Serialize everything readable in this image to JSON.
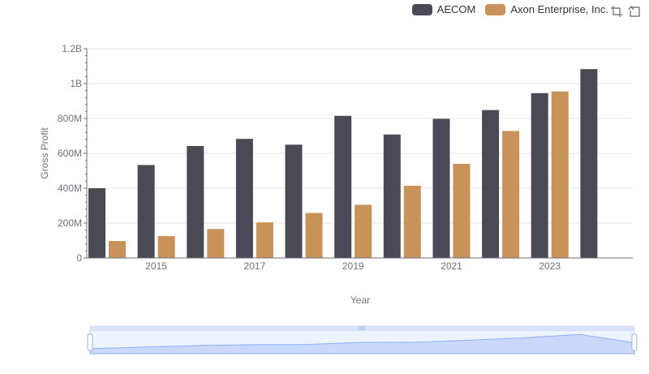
{
  "colors": {
    "aecom": "#4a4a56",
    "axon": "#c99258",
    "grid": "#e6e6e6",
    "axis": "#6e7079",
    "zoom_fill": "#d6e1fb",
    "zoom_line": "#8fb0f7"
  },
  "toolbox": {
    "icons": [
      "zoom-icon",
      "restore-icon"
    ]
  },
  "chart_data": {
    "type": "bar",
    "title": "",
    "xlabel": "Year",
    "ylabel": "Gross Profit",
    "categories": [
      "2014",
      "2015",
      "2016",
      "2017",
      "2018",
      "2019",
      "2020",
      "2021",
      "2022",
      "2023",
      "2024"
    ],
    "x_tick_labels": [
      "2015",
      "2017",
      "2019",
      "2021",
      "2023"
    ],
    "y_tick_labels": [
      "0",
      "200M",
      "400M",
      "600M",
      "800M",
      "1B",
      "1.2B"
    ],
    "ylim": [
      0,
      1200000000
    ],
    "grid": true,
    "legend_position": "top-right",
    "series": [
      {
        "name": "AECOM",
        "values": [
          400000000,
          533000000,
          642000000,
          683000000,
          650000000,
          815000000,
          708000000,
          798000000,
          848000000,
          945000000,
          1083000000
        ]
      },
      {
        "name": "Axon Enterprise, Inc.",
        "values": [
          97000000,
          125000000,
          166000000,
          204000000,
          258000000,
          305000000,
          414000000,
          540000000,
          728000000,
          955000000,
          null
        ]
      }
    ]
  }
}
